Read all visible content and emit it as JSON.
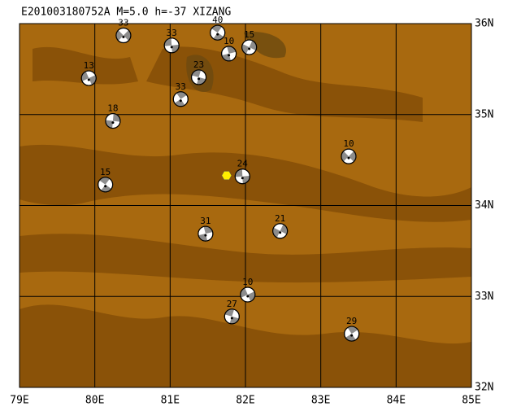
{
  "map": {
    "title": "E201003180752A M=5.0 h=-37 XIZANG",
    "lonlim": [
      79,
      85
    ],
    "latlim": [
      32,
      36
    ],
    "lonticks": [
      {
        "value": 79,
        "label": "79E"
      },
      {
        "value": 80,
        "label": "80E"
      },
      {
        "value": 81,
        "label": "81E"
      },
      {
        "value": 82,
        "label": "82E"
      },
      {
        "value": 83,
        "label": "83E"
      },
      {
        "value": 84,
        "label": "84E"
      },
      {
        "value": 85,
        "label": "85E"
      }
    ],
    "latticks": [
      {
        "value": 32,
        "label": "32N"
      },
      {
        "value": 33,
        "label": "33N"
      },
      {
        "value": 34,
        "label": "34N"
      },
      {
        "value": 35,
        "label": "35N"
      },
      {
        "value": 36,
        "label": "36N"
      }
    ],
    "epicenter": {
      "lon": 81.75,
      "lat": 34.33,
      "color": "#ffee00"
    },
    "events": [
      {
        "label": "33",
        "lon": 80.38,
        "lat": 35.87
      },
      {
        "label": "33",
        "lon": 81.02,
        "lat": 35.76
      },
      {
        "label": "40",
        "lon": 81.63,
        "lat": 35.9
      },
      {
        "label": "10",
        "lon": 81.78,
        "lat": 35.67
      },
      {
        "label": "15",
        "lon": 82.05,
        "lat": 35.74
      },
      {
        "label": "13",
        "lon": 79.92,
        "lat": 35.4
      },
      {
        "label": "23",
        "lon": 81.38,
        "lat": 35.41
      },
      {
        "label": "33",
        "lon": 81.14,
        "lat": 35.17
      },
      {
        "label": "18",
        "lon": 80.24,
        "lat": 34.93
      },
      {
        "label": "10",
        "lon": 83.37,
        "lat": 34.54
      },
      {
        "label": "24",
        "lon": 81.96,
        "lat": 34.32
      },
      {
        "label": "15",
        "lon": 80.14,
        "lat": 34.23
      },
      {
        "label": "31",
        "lon": 81.47,
        "lat": 33.69
      },
      {
        "label": "21",
        "lon": 82.46,
        "lat": 33.72
      },
      {
        "label": "10",
        "lon": 82.03,
        "lat": 33.02
      },
      {
        "label": "27",
        "lon": 81.82,
        "lat": 32.78
      },
      {
        "label": "29",
        "lon": 83.41,
        "lat": 32.59
      }
    ]
  }
}
